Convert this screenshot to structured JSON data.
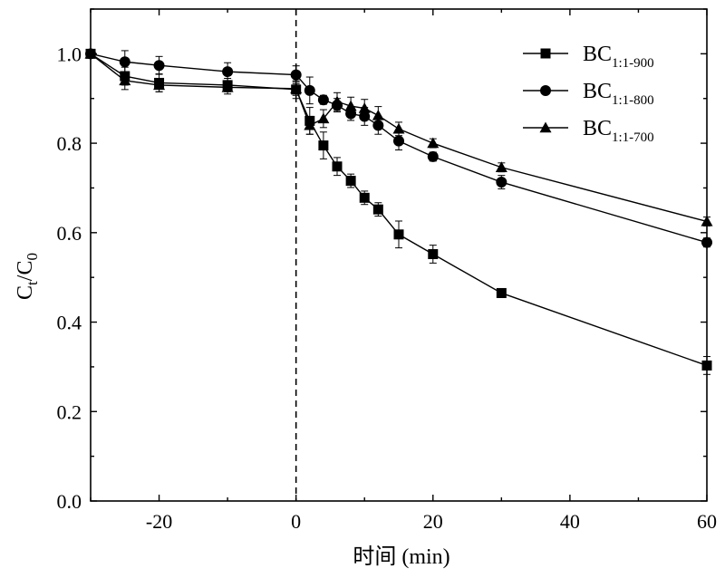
{
  "chart_data": {
    "type": "line",
    "title": "",
    "xlabel": "时间 (min)",
    "ylabel": {
      "main": "C",
      "sub1": "t",
      "sep": "/C",
      "sub2": "0"
    },
    "xlim": [
      -30,
      60
    ],
    "ylim": [
      0,
      1.1
    ],
    "xticks": [
      -20,
      0,
      20,
      40,
      60
    ],
    "xtick_labels": [
      "-20",
      "0",
      "20",
      "40",
      "60"
    ],
    "yticks": [
      0.0,
      0.2,
      0.4,
      0.6,
      0.8,
      1.0
    ],
    "ytick_labels": [
      "0.0",
      "0.2",
      "0.4",
      "0.6",
      "0.8",
      "1.0"
    ],
    "vertical_reference_line": {
      "x": 0,
      "style": "dashed"
    },
    "legend_position": "top-right",
    "series": [
      {
        "name": "BC1:1-900",
        "label_main": "BC",
        "label_sub": "1:1-900",
        "marker": "square",
        "x": [
          -30,
          -25,
          -20,
          -10,
          0,
          2,
          4,
          6,
          8,
          10,
          12,
          15,
          20,
          30,
          60
        ],
        "y": [
          1.0,
          0.95,
          0.935,
          0.93,
          0.92,
          0.85,
          0.795,
          0.748,
          0.716,
          0.678,
          0.652,
          0.596,
          0.552,
          0.465,
          0.303
        ],
        "err": [
          0,
          0.02,
          0.02,
          0.015,
          0.02,
          0.03,
          0.03,
          0.02,
          0.015,
          0.015,
          0.015,
          0.03,
          0.02,
          0.01,
          0.02
        ]
      },
      {
        "name": "BC1:1-800",
        "label_main": "BC",
        "label_sub": "1:1-800",
        "marker": "circle",
        "x": [
          -30,
          -25,
          -20,
          -10,
          0,
          2,
          4,
          6,
          8,
          10,
          12,
          15,
          20,
          30,
          60
        ],
        "y": [
          1.0,
          0.982,
          0.974,
          0.96,
          0.953,
          0.918,
          0.897,
          0.885,
          0.866,
          0.86,
          0.84,
          0.805,
          0.77,
          0.713,
          0.578
        ],
        "err": [
          0,
          0.025,
          0.02,
          0.02,
          0.02,
          0.03,
          0.01,
          0.015,
          0.015,
          0.02,
          0.02,
          0.02,
          0.01,
          0.015,
          0.01
        ]
      },
      {
        "name": "BC1:1-700",
        "label_main": "BC",
        "label_sub": "1:1-700",
        "marker": "triangle",
        "x": [
          -30,
          -25,
          -20,
          -10,
          0,
          2,
          4,
          6,
          8,
          10,
          12,
          15,
          20,
          30,
          60
        ],
        "y": [
          1.0,
          0.94,
          0.93,
          0.925,
          0.922,
          0.84,
          0.855,
          0.893,
          0.883,
          0.878,
          0.862,
          0.832,
          0.8,
          0.746,
          0.625
        ],
        "err": [
          0,
          0.02,
          0.015,
          0.015,
          0.015,
          0.02,
          0.02,
          0.02,
          0.02,
          0.02,
          0.02,
          0.015,
          0.01,
          0.01,
          0.01
        ]
      }
    ]
  }
}
